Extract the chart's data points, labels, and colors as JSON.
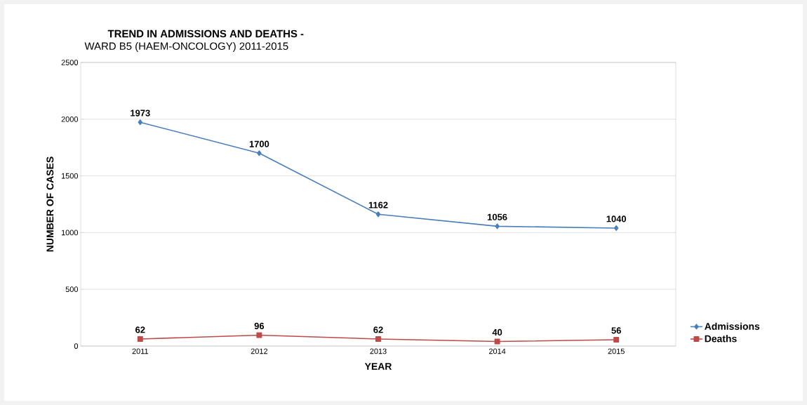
{
  "chart_data": {
    "type": "line",
    "title": "TREND IN ADMISSIONS AND DEATHS -",
    "subtitle": "WARD B5 (HAEM-ONCOLOGY) 2011-2015",
    "xlabel": "YEAR",
    "ylabel": "NUMBER OF CASES",
    "categories": [
      "2011",
      "2012",
      "2013",
      "2014",
      "2015"
    ],
    "series": [
      {
        "name": "Admissions",
        "color": "#4a7ebb",
        "marker": "diamond",
        "values": [
          1973,
          1700,
          1162,
          1056,
          1040
        ]
      },
      {
        "name": "Deaths",
        "color": "#be4b48",
        "marker": "square",
        "values": [
          62,
          96,
          62,
          40,
          56
        ]
      }
    ],
    "ylim": [
      0,
      2500
    ],
    "yticks": [
      0,
      500,
      1000,
      1500,
      2000,
      2500
    ],
    "grid": "y",
    "legend": "right",
    "data_labels": true,
    "line_style": "solid"
  }
}
